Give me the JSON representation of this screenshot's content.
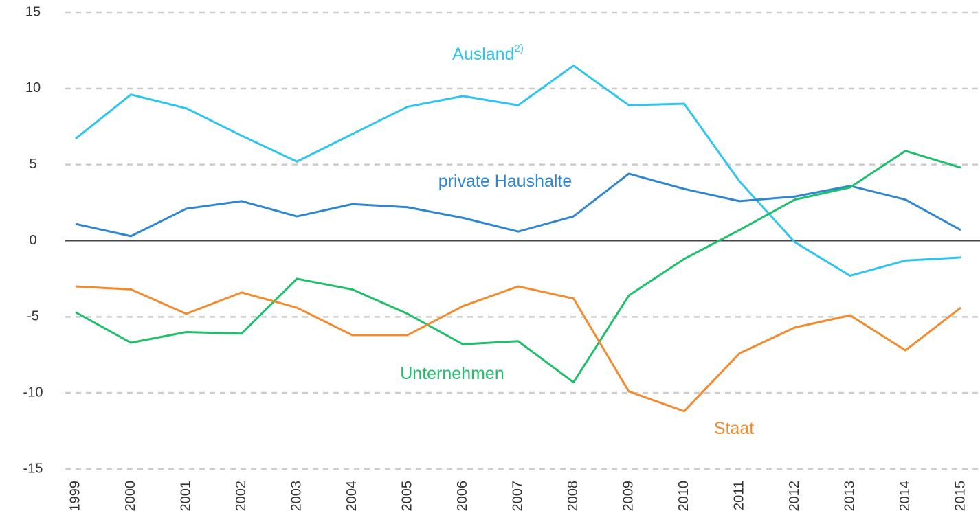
{
  "chart_data": {
    "type": "line",
    "categories": [
      "1999",
      "2000",
      "2001",
      "2002",
      "2003",
      "2004",
      "2005",
      "2006",
      "2007",
      "2008",
      "2009",
      "2010",
      "2011",
      "2012",
      "2013",
      "2014",
      "2015"
    ],
    "series": [
      {
        "name": "Ausland",
        "note": "2)",
        "color": "#2ec4f0",
        "values": [
          6.7,
          9.6,
          8.7,
          6.9,
          5.2,
          7.0,
          8.8,
          9.5,
          8.9,
          11.5,
          8.9,
          9.0,
          3.9,
          -0.1,
          -2.3,
          -1.3,
          -1.1
        ]
      },
      {
        "name": "private Haushalte",
        "color": "#2f86d0",
        "values": [
          1.1,
          0.3,
          2.1,
          2.6,
          1.6,
          2.4,
          2.2,
          1.5,
          0.6,
          1.6,
          4.4,
          3.4,
          2.6,
          2.9,
          3.6,
          2.7,
          0.7
        ]
      },
      {
        "name": "Unternehmen",
        "color": "#1fbf6a",
        "values": [
          -4.7,
          -6.7,
          -6.0,
          -6.1,
          -2.5,
          -3.2,
          -4.8,
          -6.8,
          -6.6,
          -9.3,
          -3.6,
          -1.2,
          0.7,
          2.7,
          3.5,
          5.9,
          4.8
        ]
      },
      {
        "name": "Staat",
        "color": "#f28a2e",
        "values": [
          -3.0,
          -3.2,
          -4.8,
          -3.4,
          -4.4,
          -6.2,
          -6.2,
          -4.3,
          -3.0,
          -3.8,
          -9.9,
          -11.2,
          -7.4,
          -5.7,
          -4.9,
          -7.2,
          -4.4
        ]
      }
    ],
    "ylim": [
      -15,
      15
    ],
    "yticks": [
      -15,
      -10,
      -5,
      0,
      5,
      10,
      15
    ],
    "grid": true
  }
}
